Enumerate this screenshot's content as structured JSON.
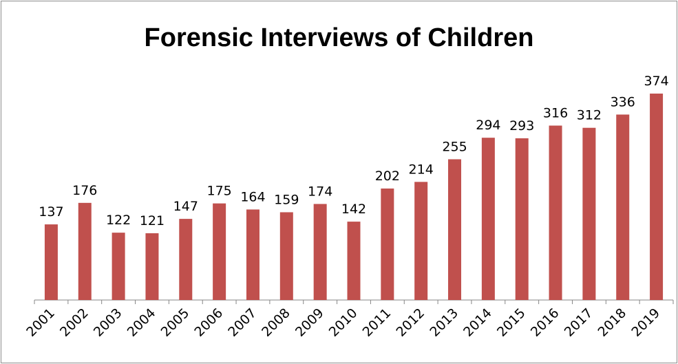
{
  "chart_data": {
    "type": "bar",
    "title": "Forensic Interviews of Children",
    "xlabel": "",
    "ylabel": "",
    "categories": [
      "2001",
      "2002",
      "2003",
      "2004",
      "2005",
      "2006",
      "2007",
      "2008",
      "2009",
      "2010",
      "2011",
      "2012",
      "2013",
      "2014",
      "2015",
      "2016",
      "2017",
      "2018",
      "2019"
    ],
    "values": [
      137,
      176,
      122,
      121,
      147,
      175,
      164,
      159,
      174,
      142,
      202,
      214,
      255,
      294,
      293,
      316,
      312,
      336,
      374
    ],
    "ylim": [
      0,
      400
    ],
    "grid": false,
    "legend": "none",
    "bar_color": "#c0504d",
    "axis_color": "#868686"
  }
}
